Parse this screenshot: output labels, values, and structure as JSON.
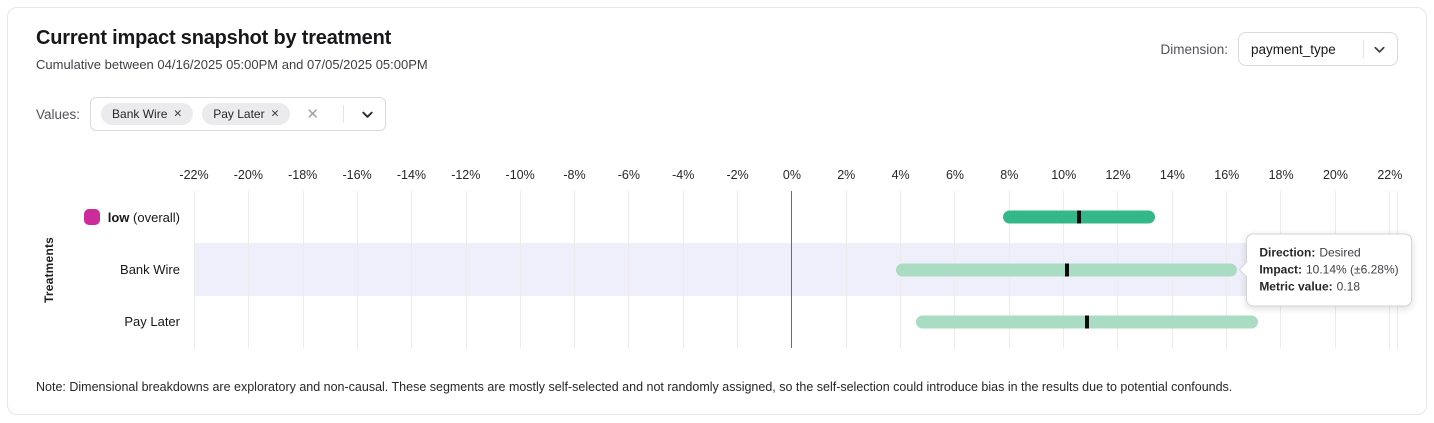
{
  "header": {
    "title": "Current impact snapshot by treatment",
    "subtitle": "Cumulative between 04/16/2025 05:00PM and 07/05/2025 05:00PM"
  },
  "dimension": {
    "label": "Dimension:",
    "value": "payment_type"
  },
  "values_filter": {
    "label": "Values:",
    "chips": [
      {
        "label": "Bank Wire"
      },
      {
        "label": "Pay Later"
      }
    ],
    "remove_icon": "✕",
    "clear_icon": "✕"
  },
  "chart_data": {
    "type": "bar",
    "subtype": "horizontal-range-bars-with-point-estimate",
    "title": "Current impact snapshot by treatment",
    "xlabel": "",
    "ylabel": "Treatments",
    "xmin": -22,
    "xmax": 22.3,
    "grid": true,
    "highlight_color": "#efeffb",
    "x_tick_values": [
      -22,
      -20,
      -18,
      -16,
      -14,
      -12,
      -10,
      -8,
      -6,
      -4,
      -2,
      0,
      2,
      4,
      6,
      8,
      10,
      12,
      14,
      16,
      18,
      20,
      22
    ],
    "x_tick_labels": [
      "-22%",
      "-20%",
      "-18%",
      "-16%",
      "-14%",
      "-12%",
      "-10%",
      "-8%",
      "-6%",
      "-4%",
      "-2%",
      "0%",
      "2%",
      "4%",
      "6%",
      "8%",
      "10%",
      "12%",
      "14%",
      "16%",
      "18%",
      "20%",
      "22%"
    ],
    "rows": [
      {
        "label": "low (overall)",
        "bold_part": "low",
        "rest_part": " (overall)",
        "swatch_color": "#cd2b9b",
        "low": 7.8,
        "high": 13.4,
        "center": 10.6,
        "bar_color": "#35b888",
        "highlighted": false
      },
      {
        "label": "Bank Wire",
        "bold_part": "",
        "rest_part": "Bank Wire",
        "low": 3.86,
        "high": 16.42,
        "center": 10.14,
        "bar_color": "#a9dcc3",
        "highlighted": true
      },
      {
        "label": "Pay Later",
        "bold_part": "",
        "rest_part": "Pay Later",
        "low": 4.6,
        "high": 17.2,
        "center": 10.9,
        "bar_color": "#a9dcc3",
        "highlighted": false
      }
    ]
  },
  "tooltip": {
    "anchor_row": "Bank Wire",
    "lines": [
      {
        "label": "Direction:",
        "value": "Desired"
      },
      {
        "label": "Impact:",
        "value": "10.14% (±6.28%)"
      },
      {
        "label": "Metric value:",
        "value": "0.18"
      }
    ]
  },
  "note": "Note: Dimensional breakdowns are exploratory and non-causal. These segments are mostly self-selected and not randomly assigned, so the self-selection could introduce bias in the results due to potential confounds."
}
